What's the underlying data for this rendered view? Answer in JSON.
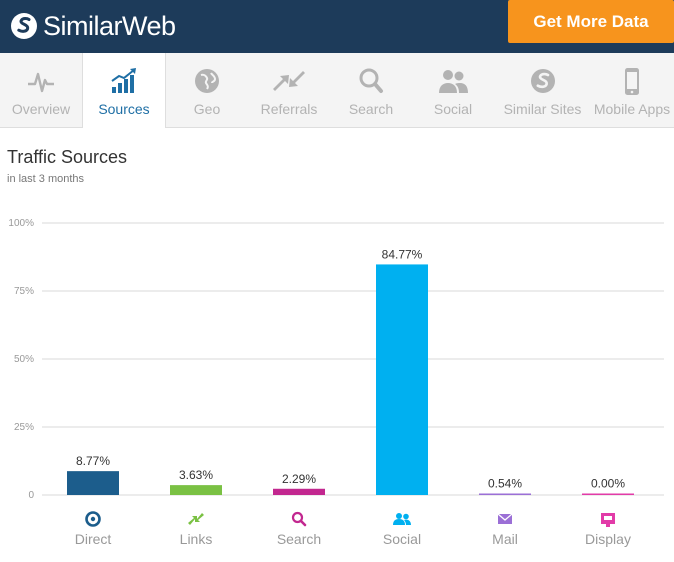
{
  "header": {
    "brand": "SimilarWeb",
    "cta_label": "Get More Data",
    "cta_color": "#f7941d",
    "bg_color": "#1d3b5a"
  },
  "tabs": [
    {
      "label": "Overview",
      "icon": "pulse-icon"
    },
    {
      "label": "Sources",
      "icon": "bar-chart-icon",
      "active": true
    },
    {
      "label": "Geo",
      "icon": "globe-icon"
    },
    {
      "label": "Referrals",
      "icon": "arrows-icon"
    },
    {
      "label": "Search",
      "icon": "magnifier-icon"
    },
    {
      "label": "Social",
      "icon": "people-icon"
    },
    {
      "label": "Similar Sites",
      "icon": "similarweb-icon"
    },
    {
      "label": "Mobile Apps",
      "icon": "phone-icon"
    }
  ],
  "section": {
    "title": "Traffic Sources",
    "subtitle": "in last 3 months"
  },
  "chart_data": {
    "type": "bar",
    "title": "Traffic Sources",
    "subtitle": "in last 3 months",
    "categories": [
      "Direct",
      "Links",
      "Search",
      "Social",
      "Mail",
      "Display"
    ],
    "values": [
      8.77,
      3.63,
      2.29,
      84.77,
      0.54,
      0.0
    ],
    "value_labels": [
      "8.77%",
      "3.63%",
      "2.29%",
      "84.77%",
      "0.54%",
      "0.00%"
    ],
    "colors": [
      "#1c5d8c",
      "#7ac143",
      "#c2278f",
      "#00b0f0",
      "#9b6fd6",
      "#e23ba8"
    ],
    "icons": [
      "target-icon",
      "link-arrows-icon",
      "magnifier-icon",
      "people-icon",
      "envelope-icon",
      "display-ad-icon"
    ],
    "ylim": [
      0,
      100
    ],
    "yticks": [
      0,
      25,
      50,
      75,
      100
    ],
    "ytick_labels": [
      "0",
      "25%",
      "50%",
      "75%",
      "100%"
    ],
    "grid": true,
    "xlabel": "",
    "ylabel": ""
  }
}
